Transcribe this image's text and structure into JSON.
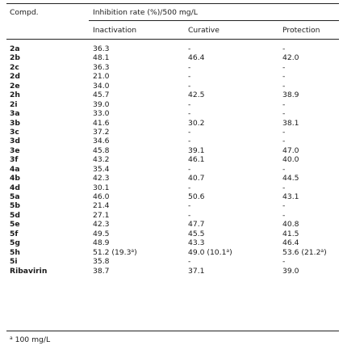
{
  "table": {
    "header_compd": "Compd.",
    "header_group": "Inhibition rate (%)/500 mg/L",
    "columns": [
      "Inactivation",
      "Curative",
      "Protection"
    ],
    "rows": [
      {
        "compd": "2a",
        "inactivation": "36.3",
        "curative": "-",
        "protection": "-"
      },
      {
        "compd": "2b",
        "inactivation": "48.1",
        "curative": "46.4",
        "protection": "42.0"
      },
      {
        "compd": "2c",
        "inactivation": "36.3",
        "curative": "-",
        "protection": "-"
      },
      {
        "compd": "2d",
        "inactivation": "21.0",
        "curative": "-",
        "protection": "-"
      },
      {
        "compd": "2e",
        "inactivation": "34.0",
        "curative": "-",
        "protection": "-"
      },
      {
        "compd": "2h",
        "inactivation": "45.7",
        "curative": "42.5",
        "protection": "38.9"
      },
      {
        "compd": "2i",
        "inactivation": "39.0",
        "curative": "-",
        "protection": "-"
      },
      {
        "compd": "3a",
        "inactivation": "33.0",
        "curative": "-",
        "protection": "-"
      },
      {
        "compd": "3b",
        "inactivation": "41.6",
        "curative": "30.2",
        "protection": "38.1"
      },
      {
        "compd": "3c",
        "inactivation": "37.2",
        "curative": "-",
        "protection": "-"
      },
      {
        "compd": "3d",
        "inactivation": "34.6",
        "curative": "-",
        "protection": "-"
      },
      {
        "compd": "3e",
        "inactivation": "45.8",
        "curative": "39.1",
        "protection": "47.0"
      },
      {
        "compd": "3f",
        "inactivation": "43.2",
        "curative": "46.1",
        "protection": "40.0"
      },
      {
        "compd": "4a",
        "inactivation": "35.4",
        "curative": "-",
        "protection": "-"
      },
      {
        "compd": "4b",
        "inactivation": "42.3",
        "curative": "40.7",
        "protection": "44.5"
      },
      {
        "compd": "4d",
        "inactivation": "30.1",
        "curative": "-",
        "protection": "-"
      },
      {
        "compd": "5a",
        "inactivation": "46.0",
        "curative": "50.6",
        "protection": "43.1"
      },
      {
        "compd": "5b",
        "inactivation": "21.4",
        "curative": "-",
        "protection": "-"
      },
      {
        "compd": "5d",
        "inactivation": "27.1",
        "curative": "-",
        "protection": "-"
      },
      {
        "compd": "5e",
        "inactivation": "42.3",
        "curative": "47.7",
        "protection": "40.8"
      },
      {
        "compd": "5f",
        "inactivation": "49.5",
        "curative": "45.5",
        "protection": "41.5"
      },
      {
        "compd": "5g",
        "inactivation": "48.9",
        "curative": "43.3",
        "protection": "46.4"
      },
      {
        "compd": "5h",
        "inactivation": "51.2 (19.3",
        "inactivation_sup": "a",
        "inactivation_tail": ")",
        "curative": "49.0 (10.1",
        "curative_sup": "a",
        "curative_tail": ")",
        "protection": "53.6 (21.2",
        "protection_sup": "a",
        "protection_tail": ")"
      },
      {
        "compd": "5i",
        "inactivation": "35.8",
        "curative": "-",
        "protection": "-"
      },
      {
        "compd": "Ribavirin",
        "inactivation": "38.7",
        "curative": "37.1",
        "protection": "39.0"
      }
    ],
    "footnote_mark": "a",
    "footnote_text": "100 mg/L"
  }
}
